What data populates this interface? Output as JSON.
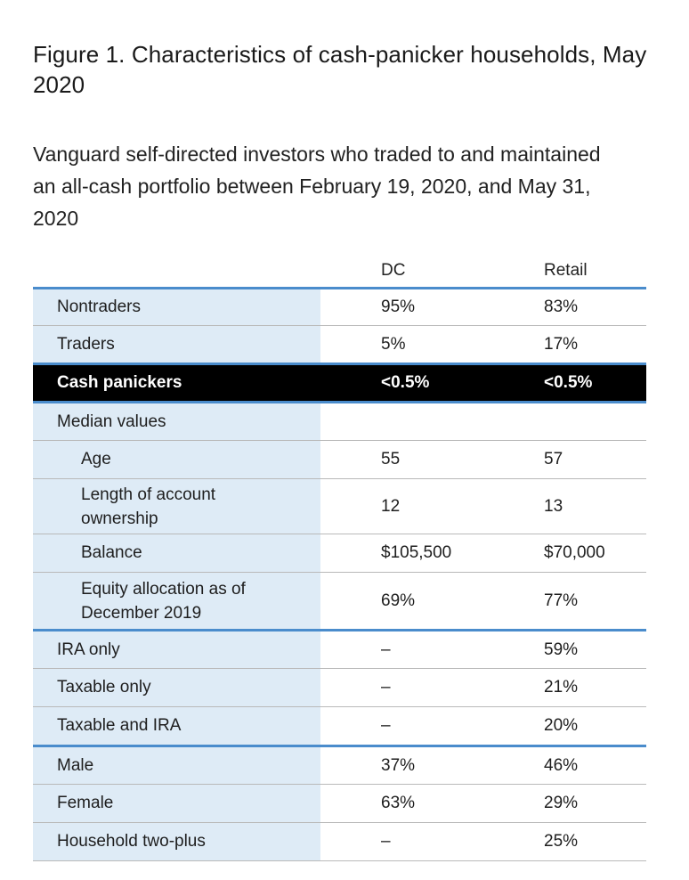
{
  "title": "Figure 1. Characteristics of cash-panicker households, May 2020",
  "subtitle": "Vanguard self-directed investors who traded to and maintained an all-cash portfolio between February 19, 2020, and May 31, 2020",
  "table": {
    "headers": {
      "label": "",
      "dc": "DC",
      "retail": "Retail"
    },
    "rows": [
      {
        "label": "Nontraders",
        "dc": "95%",
        "retail": "83%"
      },
      {
        "label": "Traders",
        "dc": "5%",
        "retail": "17%"
      },
      {
        "label": "Cash panickers",
        "dc": "<0.5%",
        "retail": "<0.5%"
      },
      {
        "label": "Median values",
        "dc": "",
        "retail": ""
      },
      {
        "label": "Age",
        "dc": "55",
        "retail": "57"
      },
      {
        "label": "Length of account ownership",
        "dc": "12",
        "retail": "13"
      },
      {
        "label": "Balance",
        "dc": "$105,500",
        "retail": "$70,000"
      },
      {
        "label": "Equity allocation as of December 2019",
        "dc": "69%",
        "retail": "77%"
      },
      {
        "label": "IRA only",
        "dc": "–",
        "retail": "59%"
      },
      {
        "label": "Taxable only",
        "dc": "–",
        "retail": "21%"
      },
      {
        "label": "Taxable and IRA",
        "dc": "–",
        "retail": "20%"
      },
      {
        "label": "Male",
        "dc": "37%",
        "retail": "46%"
      },
      {
        "label": "Female",
        "dc": "63%",
        "retail": "29%"
      },
      {
        "label": "Household two-plus",
        "dc": "–",
        "retail": "25%"
      }
    ]
  },
  "colors": {
    "accent_rule": "#4a8ccc",
    "label_column_bg": "#deebf6",
    "highlight_row_bg": "#000000",
    "highlight_row_text": "#ffffff"
  }
}
